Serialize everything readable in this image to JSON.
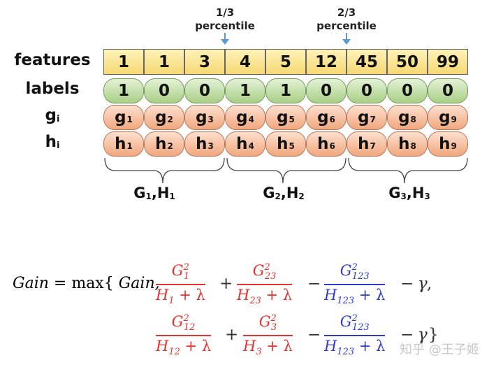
{
  "markers": [
    {
      "label": "1/3\npercentile"
    },
    {
      "label": "2/3\npercentile"
    }
  ],
  "rows": {
    "features": {
      "label": "features",
      "values": [
        "1",
        "1",
        "3",
        "4",
        "5",
        "12",
        "45",
        "50",
        "99"
      ]
    },
    "labels": {
      "label": "labels",
      "values": [
        "1",
        "0",
        "0",
        "1",
        "1",
        "0",
        "0",
        "0",
        "0"
      ]
    },
    "g": {
      "label": "g",
      "label_sub": "i",
      "prefix": "g",
      "subs": [
        "1",
        "2",
        "3",
        "4",
        "5",
        "6",
        "7",
        "8",
        "9"
      ]
    },
    "h": {
      "label": "h",
      "label_sub": "i",
      "prefix": "h",
      "subs": [
        "1",
        "2",
        "3",
        "4",
        "5",
        "6",
        "7",
        "8",
        "9"
      ]
    }
  },
  "groups": [
    {
      "g": "G",
      "g_sub": "1",
      "sep": ",",
      "h": "H",
      "h_sub": "1"
    },
    {
      "g": "G",
      "g_sub": "2",
      "sep": ",",
      "h": "H",
      "h_sub": "2"
    },
    {
      "g": "G",
      "g_sub": "3",
      "sep": ",",
      "h": "H",
      "h_sub": "3"
    }
  ],
  "formula": {
    "lhs": "Gain",
    "eq": "= max{",
    "gain_word": "Gain,",
    "line1": [
      {
        "num": "G",
        "num_sub": "1",
        "num_sup": "2",
        "den": "H",
        "den_sub": "1",
        "den_tail": " + λ",
        "color": "red"
      },
      {
        "num": "G",
        "num_sub": "23",
        "num_sup": "2",
        "den": "H",
        "den_sub": "23",
        "den_tail": " + λ",
        "color": "red"
      },
      {
        "num": "G",
        "num_sub": "123",
        "num_sup": "2",
        "den": "H",
        "den_sub": "123",
        "den_tail": " + λ",
        "color": "blue"
      }
    ],
    "line2": [
      {
        "num": "G",
        "num_sub": "12",
        "num_sup": "2",
        "den": "H",
        "den_sub": "12",
        "den_tail": " + λ",
        "color": "red"
      },
      {
        "num": "G",
        "num_sub": "3",
        "num_sup": "2",
        "den": "H",
        "den_sub": "3",
        "den_tail": " + λ",
        "color": "red"
      },
      {
        "num": "G",
        "num_sub": "123",
        "num_sup": "2",
        "den": "H",
        "den_sub": "123",
        "den_tail": " + λ",
        "color": "blue"
      }
    ],
    "plus": "+",
    "minus": "−",
    "gamma": "γ",
    "comma": ",",
    "close": "}"
  },
  "watermark": "知乎 @王子姬",
  "colors": {
    "feature_fill": "#f6d874",
    "label_fill": "#a9cf86",
    "gh_fill": "#f1a77e",
    "marker_arrow": "#5b9bd5",
    "red": "#e8322f",
    "blue": "#2f3ad0",
    "green": "#39c152"
  }
}
